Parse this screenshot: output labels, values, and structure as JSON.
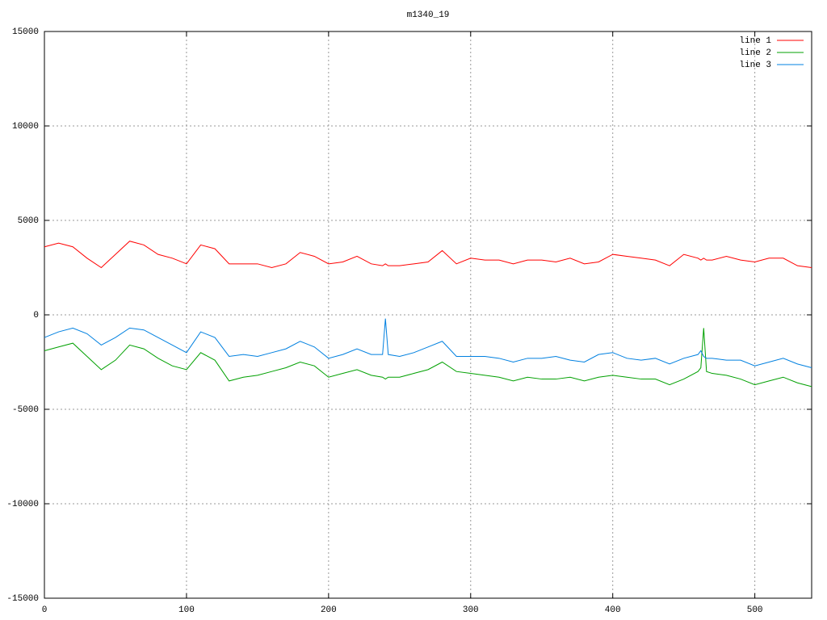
{
  "chart_data": {
    "type": "line",
    "title": "m1340_19",
    "x": [
      0,
      10,
      20,
      30,
      40,
      50,
      60,
      70,
      80,
      90,
      100,
      110,
      120,
      130,
      140,
      150,
      160,
      170,
      180,
      190,
      200,
      210,
      220,
      230,
      238,
      240,
      242,
      250,
      260,
      270,
      280,
      290,
      300,
      310,
      320,
      330,
      340,
      350,
      360,
      370,
      380,
      390,
      400,
      410,
      420,
      430,
      440,
      450,
      460,
      462,
      464,
      466,
      470,
      480,
      490,
      500,
      510,
      520,
      530,
      540
    ],
    "series": [
      {
        "name": "line 1",
        "color": "#ff0000",
        "values": [
          3600,
          3800,
          3600,
          3000,
          2500,
          3200,
          3900,
          3700,
          3200,
          3000,
          2700,
          3700,
          3500,
          2700,
          2700,
          2700,
          2500,
          2700,
          3300,
          3100,
          2700,
          2800,
          3100,
          2700,
          2600,
          2700,
          2600,
          2600,
          2700,
          2800,
          3400,
          2700,
          3000,
          2900,
          2900,
          2700,
          2900,
          2900,
          2800,
          3000,
          2700,
          2800,
          3200,
          3100,
          3000,
          2900,
          2600,
          3200,
          3000,
          2900,
          3000,
          2900,
          2900,
          3100,
          2900,
          2800,
          3000,
          3000,
          2600,
          2500
        ]
      },
      {
        "name": "line 2",
        "color": "#00a000",
        "values": [
          -1900,
          -1700,
          -1500,
          -2200,
          -2900,
          -2400,
          -1600,
          -1800,
          -2300,
          -2700,
          -2900,
          -2000,
          -2400,
          -3500,
          -3300,
          -3200,
          -3000,
          -2800,
          -2500,
          -2700,
          -3300,
          -3100,
          -2900,
          -3200,
          -3300,
          -3400,
          -3300,
          -3300,
          -3100,
          -2900,
          -2500,
          -3000,
          -3100,
          -3200,
          -3300,
          -3500,
          -3300,
          -3400,
          -3400,
          -3300,
          -3500,
          -3300,
          -3200,
          -3300,
          -3400,
          -3400,
          -3700,
          -3400,
          -3000,
          -2800,
          -700,
          -3000,
          -3100,
          -3200,
          -3400,
          -3700,
          -3500,
          -3300,
          -3600,
          -3800
        ]
      },
      {
        "name": "line 3",
        "color": "#0080e0",
        "values": [
          -1200,
          -900,
          -700,
          -1000,
          -1600,
          -1200,
          -700,
          -800,
          -1200,
          -1600,
          -2000,
          -900,
          -1200,
          -2200,
          -2100,
          -2200,
          -2000,
          -1800,
          -1400,
          -1700,
          -2300,
          -2100,
          -1800,
          -2100,
          -2100,
          -200,
          -2100,
          -2200,
          -2000,
          -1700,
          -1400,
          -2200,
          -2200,
          -2200,
          -2300,
          -2500,
          -2300,
          -2300,
          -2200,
          -2400,
          -2500,
          -2100,
          -2000,
          -2300,
          -2400,
          -2300,
          -2600,
          -2300,
          -2100,
          -1900,
          -2200,
          -2300,
          -2300,
          -2400,
          -2400,
          -2700,
          -2500,
          -2300,
          -2600,
          -2800
        ]
      }
    ],
    "xlim": [
      0,
      540
    ],
    "xticks": [
      0,
      100,
      200,
      300,
      400,
      500
    ],
    "ylim": [
      -15000,
      15000
    ],
    "yticks": [
      -15000,
      -10000,
      -5000,
      0,
      5000,
      10000,
      15000
    ],
    "grid": true,
    "legend": "top-right"
  }
}
